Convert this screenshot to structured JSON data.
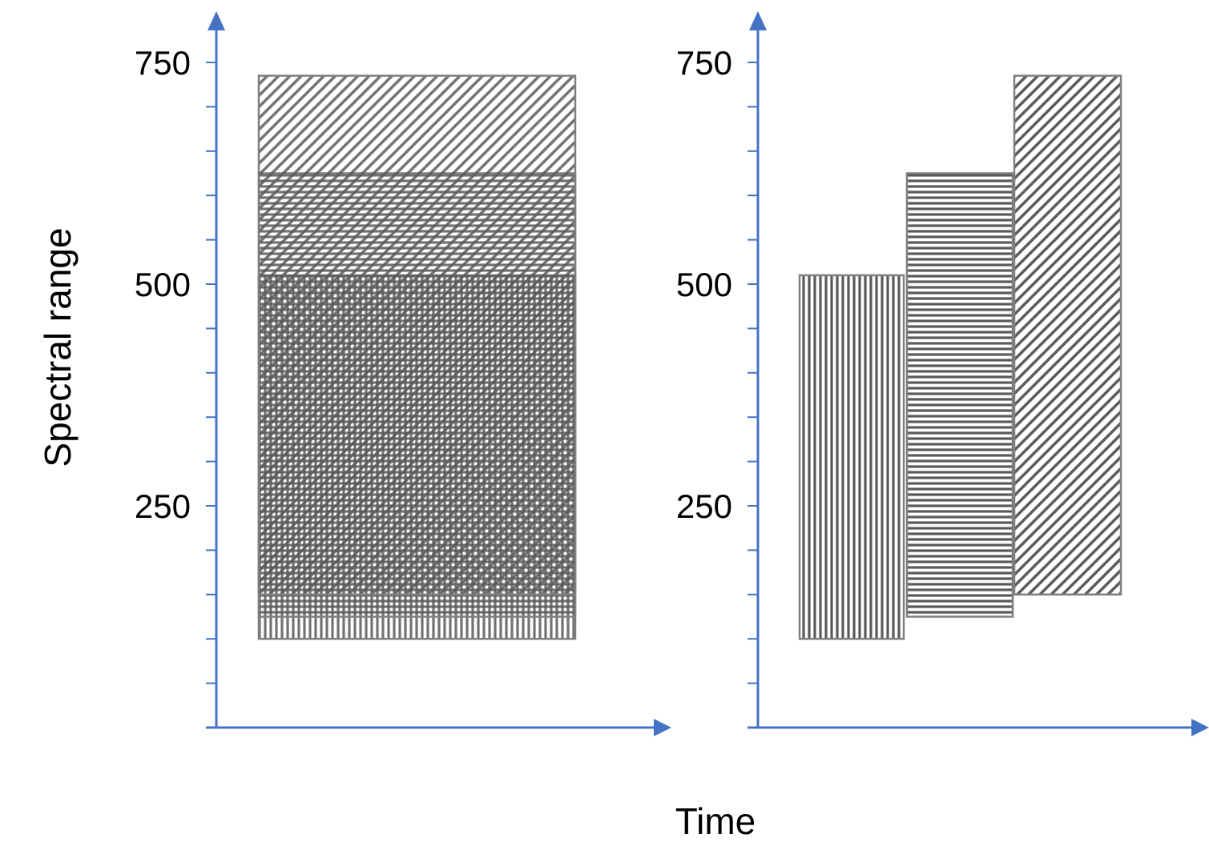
{
  "axis_color": "#4472C4",
  "bar_stroke": "#7f7f7f",
  "hatch_color": "#595959",
  "ylabel": "Spectral range",
  "xlabel": "Time",
  "panels": [
    {
      "id": "left",
      "ytick_labels": [
        {
          "value": 250,
          "label": "250"
        },
        {
          "value": 500,
          "label": "500"
        },
        {
          "value": 750,
          "label": "750"
        }
      ],
      "bands": [
        {
          "name": "vertical-hatch-band",
          "pattern": "vertical",
          "low": 100,
          "high": 510
        },
        {
          "name": "horizontal-hatch-band",
          "pattern": "horizontal",
          "low": 125,
          "high": 625
        },
        {
          "name": "diagonal-hatch-band",
          "pattern": "diagonal",
          "low": 150,
          "high": 735
        }
      ]
    },
    {
      "id": "right",
      "ytick_labels": [
        {
          "value": 250,
          "label": "250"
        },
        {
          "value": 500,
          "label": "500"
        },
        {
          "value": 750,
          "label": "750"
        }
      ],
      "bands": [
        {
          "name": "vertical-hatch-band",
          "pattern": "vertical",
          "low": 100,
          "high": 510
        },
        {
          "name": "horizontal-hatch-band",
          "pattern": "horizontal",
          "low": 125,
          "high": 625
        },
        {
          "name": "diagonal-hatch-band",
          "pattern": "diagonal",
          "low": 150,
          "high": 735
        }
      ]
    }
  ]
}
